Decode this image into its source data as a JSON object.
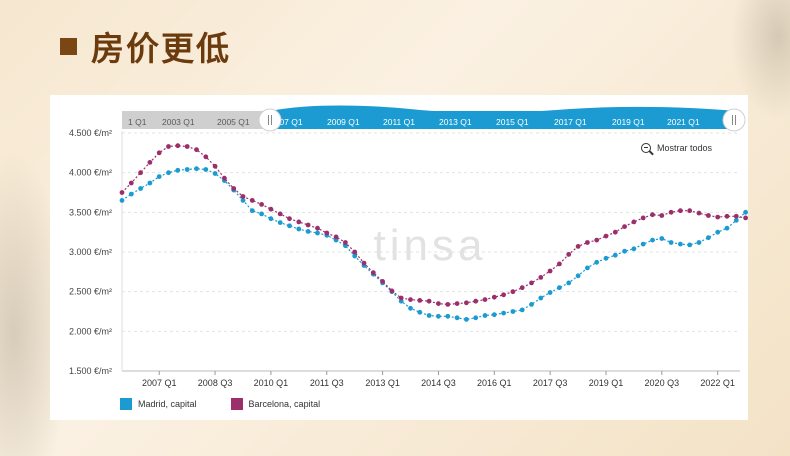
{
  "page": {
    "title": "房价更低"
  },
  "zoom": {
    "label": "Mostrar todos",
    "icon": "zoom-out-icon"
  },
  "watermark": "tinsa",
  "navigator": {
    "labels": [
      "1 Q1",
      "2003 Q1",
      "2005 Q1",
      "2007 Q1",
      "2009 Q1",
      "2011 Q1",
      "2013 Q1",
      "2015 Q1",
      "2017 Q1",
      "2019 Q1",
      "2021 Q1"
    ]
  },
  "colors": {
    "madrid": "#1b9bd1",
    "barcelona": "#9b2f6b",
    "navigator": "#1b9bd1",
    "title": "#6b3b0e"
  },
  "chart_data": {
    "type": "line",
    "ylabel": "",
    "xlabel": "",
    "ylim": [
      1500,
      4500
    ],
    "yticks": [
      4500,
      4000,
      3500,
      3000,
      2500,
      2000,
      1500
    ],
    "ytick_labels": [
      "4.500 €/m²",
      "4.000 €/m²",
      "3.500 €/m²",
      "3.000 €/m²",
      "2.500 €/m²",
      "2.000 €/m²",
      "1.500 €/m²"
    ],
    "x_start": 2006.0,
    "xlim": [
      2006.0,
      2022.6
    ],
    "x_step": 0.25,
    "xticks": [
      {
        "label": "2007 Q1",
        "x": 2007.0
      },
      {
        "label": "2008 Q3",
        "x": 2008.5
      },
      {
        "label": "2010 Q1",
        "x": 2010.0
      },
      {
        "label": "2011 Q3",
        "x": 2011.5
      },
      {
        "label": "2013 Q1",
        "x": 2013.0
      },
      {
        "label": "2014 Q3",
        "x": 2014.5
      },
      {
        "label": "2016 Q1",
        "x": 2016.0
      },
      {
        "label": "2017 Q3",
        "x": 2017.5
      },
      {
        "label": "2019 Q1",
        "x": 2019.0
      },
      {
        "label": "2020 Q3",
        "x": 2020.5
      },
      {
        "label": "2022 Q1",
        "x": 2022.0
      }
    ],
    "grid": true,
    "legend_position": "bottom-left",
    "series": [
      {
        "name": "Madrid, capital",
        "values": [
          3650,
          3730,
          3800,
          3870,
          3950,
          4000,
          4030,
          4040,
          4050,
          4040,
          3990,
          3900,
          3780,
          3650,
          3520,
          3480,
          3420,
          3370,
          3330,
          3290,
          3260,
          3240,
          3210,
          3150,
          3080,
          2950,
          2830,
          2720,
          2610,
          2500,
          2380,
          2290,
          2240,
          2200,
          2190,
          2190,
          2170,
          2150,
          2170,
          2200,
          2210,
          2230,
          2250,
          2270,
          2340,
          2420,
          2490,
          2550,
          2610,
          2700,
          2800,
          2870,
          2920,
          2960,
          3010,
          3040,
          3100,
          3150,
          3170,
          3120,
          3100,
          3090,
          3120,
          3180,
          3250,
          3300,
          3400,
          3500,
          3550
        ]
      },
      {
        "name": "Barcelona, capital",
        "values": [
          3750,
          3870,
          4000,
          4130,
          4250,
          4330,
          4340,
          4330,
          4290,
          4200,
          4080,
          3930,
          3800,
          3700,
          3650,
          3600,
          3540,
          3480,
          3420,
          3380,
          3340,
          3300,
          3240,
          3190,
          3120,
          3000,
          2860,
          2740,
          2630,
          2510,
          2420,
          2400,
          2390,
          2380,
          2350,
          2340,
          2350,
          2360,
          2380,
          2400,
          2430,
          2460,
          2500,
          2550,
          2610,
          2680,
          2760,
          2850,
          2970,
          3070,
          3120,
          3150,
          3200,
          3250,
          3320,
          3380,
          3430,
          3470,
          3460,
          3500,
          3520,
          3520,
          3490,
          3460,
          3440,
          3450,
          3450,
          3430,
          3430,
          3450,
          3500,
          3550,
          3590,
          3600
        ]
      }
    ]
  }
}
